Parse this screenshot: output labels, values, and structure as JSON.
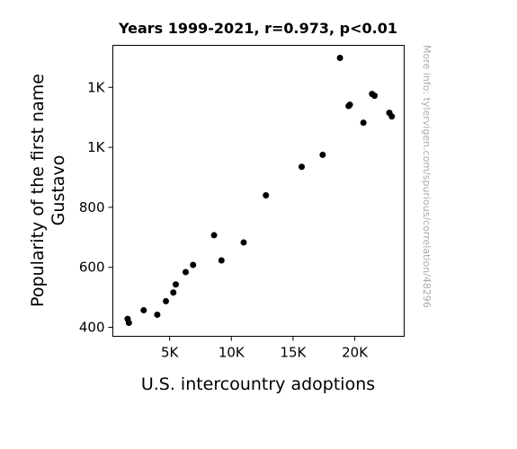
{
  "chart_data": {
    "type": "scatter",
    "title": "Years 1999-2021, r=0.973, p<0.01",
    "xlabel": "U.S. intercountry adoptions",
    "ylabel_lines": [
      "Popularity of the first name",
      "Gustavo"
    ],
    "credit": "More info: tylervigen.com/spurious/correlation/48296",
    "xlim": [
      400,
      24000
    ],
    "ylim": [
      370,
      1340
    ],
    "x_ticks": [
      {
        "value": 5000,
        "label": "5K"
      },
      {
        "value": 10000,
        "label": "10K"
      },
      {
        "value": 15000,
        "label": "15K"
      },
      {
        "value": 20000,
        "label": "20K"
      }
    ],
    "y_ticks": [
      {
        "value": 400,
        "label": "400"
      },
      {
        "value": 600,
        "label": "600"
      },
      {
        "value": 800,
        "label": "800"
      },
      {
        "value": 1000,
        "label": "1K"
      },
      {
        "value": 1200,
        "label": "1K"
      }
    ],
    "marker_color": "#000000",
    "points": [
      {
        "x": 1600,
        "y": 428
      },
      {
        "x": 1700,
        "y": 415
      },
      {
        "x": 2900,
        "y": 457
      },
      {
        "x": 4000,
        "y": 442
      },
      {
        "x": 4700,
        "y": 487
      },
      {
        "x": 5300,
        "y": 516
      },
      {
        "x": 5500,
        "y": 543
      },
      {
        "x": 6300,
        "y": 584
      },
      {
        "x": 6900,
        "y": 608
      },
      {
        "x": 8600,
        "y": 707
      },
      {
        "x": 9200,
        "y": 623
      },
      {
        "x": 11000,
        "y": 683
      },
      {
        "x": 12800,
        "y": 840
      },
      {
        "x": 15700,
        "y": 935
      },
      {
        "x": 17400,
        "y": 975
      },
      {
        "x": 18800,
        "y": 1298
      },
      {
        "x": 19500,
        "y": 1138
      },
      {
        "x": 19600,
        "y": 1142
      },
      {
        "x": 20700,
        "y": 1082
      },
      {
        "x": 21400,
        "y": 1178
      },
      {
        "x": 21600,
        "y": 1172
      },
      {
        "x": 22800,
        "y": 1115
      },
      {
        "x": 23000,
        "y": 1103
      }
    ]
  }
}
